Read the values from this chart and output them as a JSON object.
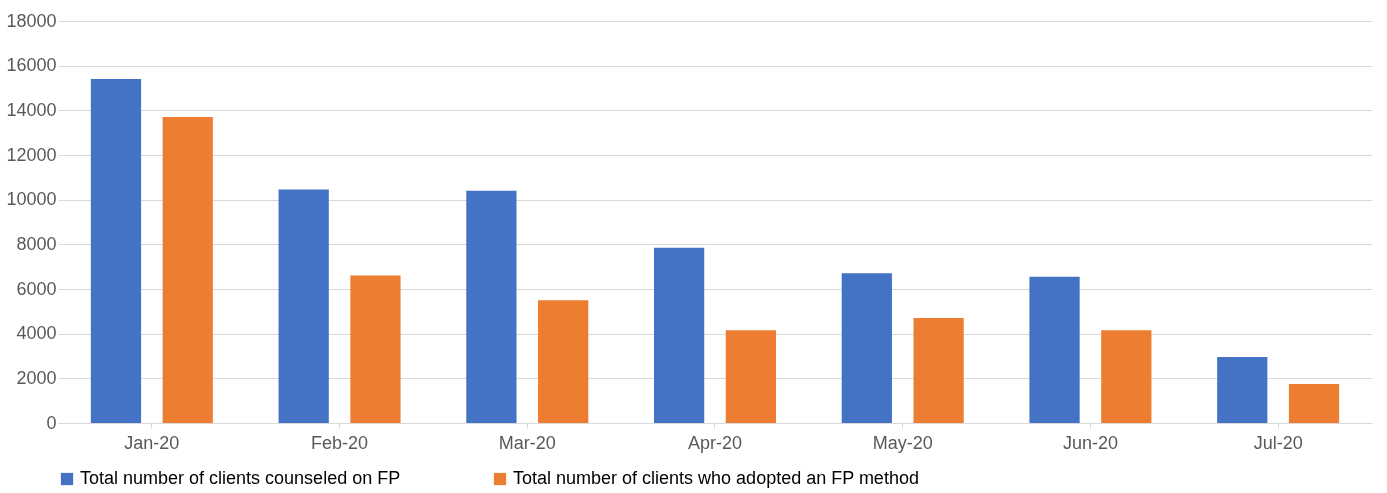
{
  "chart_data": {
    "type": "bar",
    "categories": [
      "Jan-20",
      "Feb-20",
      "Mar-20",
      "Apr-20",
      "May-20",
      "Jun-20",
      "Jul-20"
    ],
    "series": [
      {
        "name": "Total number of clients counseled on FP",
        "color": "#4472c4",
        "values": [
          15400,
          10450,
          10400,
          7850,
          6700,
          6550,
          2950
        ]
      },
      {
        "name": "Total number of clients who adopted an FP method",
        "color": "#ed7d31",
        "values": [
          13700,
          6600,
          5500,
          4150,
          4700,
          4150,
          1750
        ]
      }
    ],
    "ylim": [
      0,
      18000
    ],
    "yticks": [
      0,
      2000,
      4000,
      6000,
      8000,
      10000,
      12000,
      14000,
      16000,
      18000
    ],
    "grid": "y",
    "legend": "bottom"
  }
}
